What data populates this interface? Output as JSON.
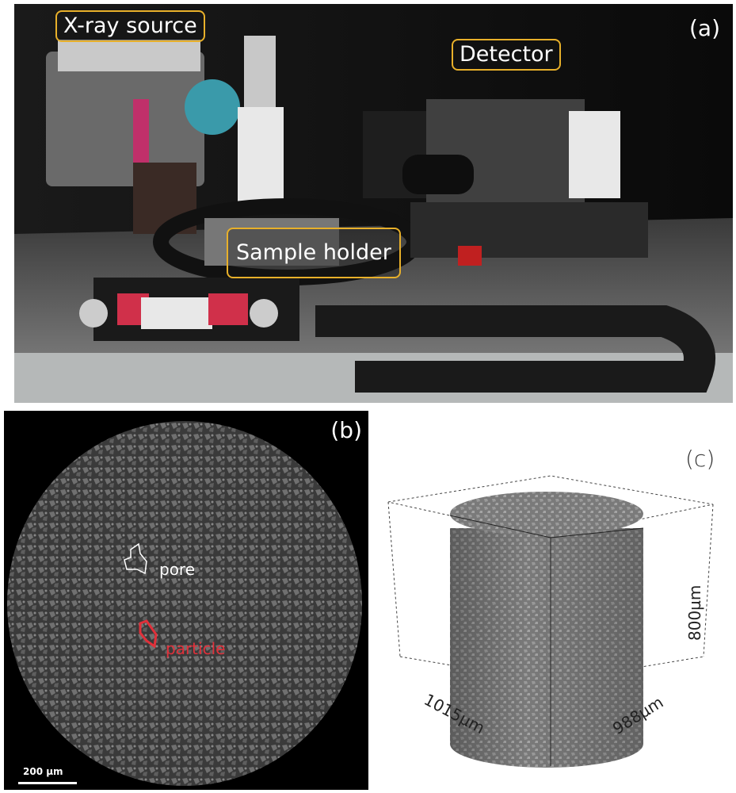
{
  "panel_a": {
    "label": "(a)",
    "callouts": {
      "source": "X-ray source",
      "detector": "Detector",
      "holder": "Sample holder"
    },
    "callout_color": "#e8b02a"
  },
  "panel_b": {
    "label": "(b)",
    "pore_label": "pore",
    "particle_label": "particle",
    "particle_color": "#e0303a",
    "scale_bar": "200 µm"
  },
  "panel_c": {
    "label": "(c)",
    "dim_height": "800µm",
    "dim_width": "1015µm",
    "dim_depth": "988µm"
  }
}
